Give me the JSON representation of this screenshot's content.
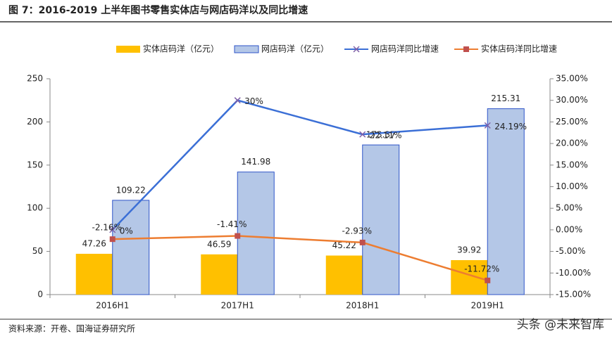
{
  "chart_data": {
    "type": "bar-line",
    "title": "图 7：2016-2019 上半年图书零售实体店与网店码洋以及同比增速",
    "categories": [
      "2016H1",
      "2017H1",
      "2018H1",
      "2019H1"
    ],
    "series": [
      {
        "name": "实体店码洋（亿元）",
        "type": "bar",
        "color": "#FFC000",
        "values": [
          47.26,
          46.59,
          45.22,
          39.92
        ]
      },
      {
        "name": "网店码洋（亿元）",
        "type": "bar",
        "color": "#B4C7E7",
        "edge": "#2F55C8",
        "values": [
          109.22,
          141.98,
          173.37,
          215.31
        ]
      },
      {
        "name": "网店码洋同比增速",
        "type": "line",
        "axis": "y2",
        "marker": "x",
        "color": "#3B6FD6",
        "values": [
          0,
          30,
          22.11,
          24.19
        ],
        "value_labels": [
          "0%",
          "30%",
          "22.11%",
          "24.19%"
        ]
      },
      {
        "name": "实体店码洋同比增速",
        "type": "line",
        "axis": "y2",
        "marker": "square",
        "color": "#ED7D31",
        "values": [
          -2.16,
          -1.41,
          -2.93,
          -11.72
        ],
        "value_labels": [
          "-2.16%",
          "-1.41%",
          "-2.93%",
          "-11.72%"
        ]
      }
    ],
    "ylim": [
      0,
      250
    ],
    "yticks": [
      0,
      50,
      100,
      150,
      200,
      250
    ],
    "y2lim": [
      -15,
      35
    ],
    "y2ticks": [
      {
        "value": -15,
        "label": "-15.00%"
      },
      {
        "value": -10,
        "label": "-10.00%"
      },
      {
        "value": -5,
        "label": "-5.00%"
      },
      {
        "value": 0,
        "label": "0.00%"
      },
      {
        "value": 5,
        "label": "5.00%"
      },
      {
        "value": 10,
        "label": "10.00%"
      },
      {
        "value": 15,
        "label": "15.00%"
      },
      {
        "value": 20,
        "label": "20.00%"
      },
      {
        "value": 25,
        "label": "25.00%"
      },
      {
        "value": 30,
        "label": "30.00%"
      },
      {
        "value": 35,
        "label": "35.00%"
      }
    ],
    "grid": false,
    "legend": "top",
    "source": "资料来源：开卷、国海证券研究所",
    "watermark": "头条 @未来智库"
  }
}
